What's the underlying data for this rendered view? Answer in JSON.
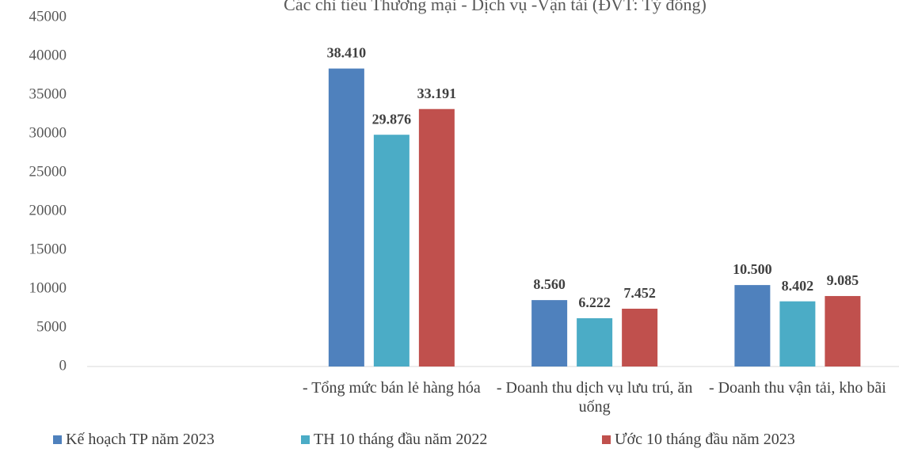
{
  "chart_data": {
    "type": "bar",
    "title": "Các chỉ tiêu Thương mại - Dịch vụ -Vận tải (ĐVT: Tỷ đồng)",
    "categories": [
      null,
      "- Tổng mức bán lẻ hàng hóa",
      "- Doanh thu dịch vụ lưu trú, ăn uống",
      "- Doanh thu vận tải, kho bãi"
    ],
    "series": [
      {
        "name": "Kế hoạch TP năm 2023",
        "color": "#4f81bd",
        "values": [
          null,
          38410,
          8560,
          10500
        ],
        "value_labels": [
          null,
          "38.410",
          "8.560",
          "10.500"
        ]
      },
      {
        "name": "TH 10 tháng đầu năm 2022",
        "color": "#4bacc6",
        "values": [
          null,
          29876,
          6222,
          8402
        ],
        "value_labels": [
          null,
          "29.876",
          "6.222",
          "8.402"
        ]
      },
      {
        "name": "Ước 10 tháng đầu năm 2023",
        "color": "#c0504d",
        "values": [
          null,
          33191,
          7452,
          9085
        ],
        "value_labels": [
          null,
          "33.191",
          "7.452",
          "9.085"
        ]
      }
    ],
    "ylim": [
      0,
      45000
    ],
    "yticks": [
      0,
      5000,
      10000,
      15000,
      20000,
      25000,
      30000,
      35000,
      40000,
      45000
    ],
    "grid": false,
    "legend": "bottom"
  }
}
